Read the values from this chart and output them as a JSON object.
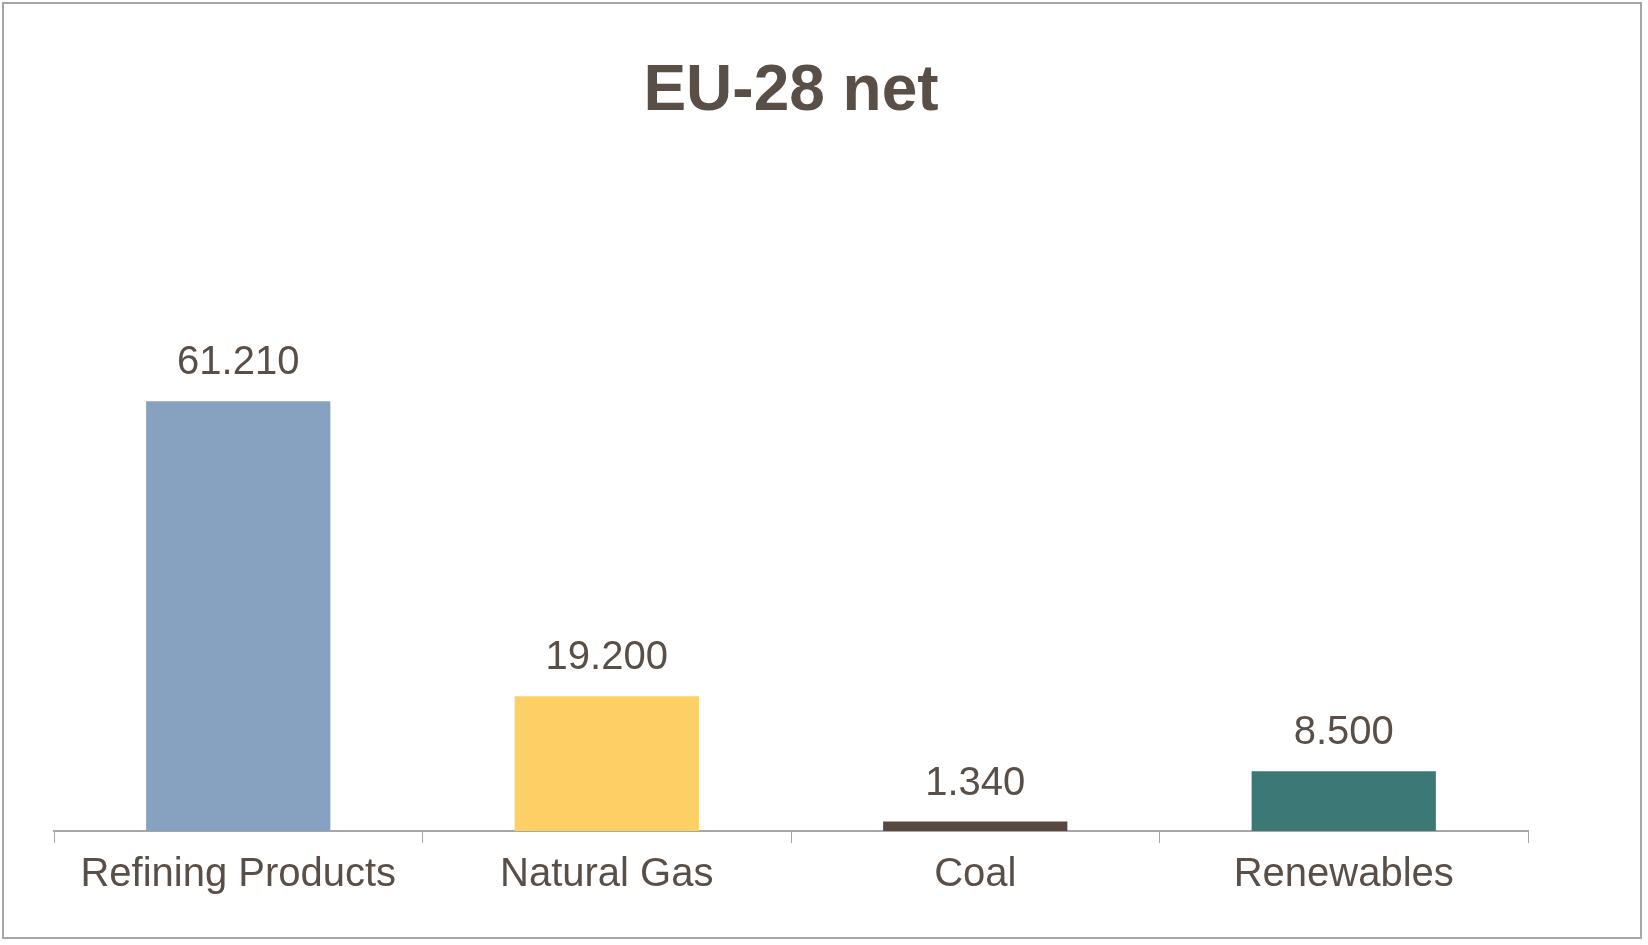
{
  "chart_data": {
    "type": "bar",
    "title": "EU-28 net",
    "categories": [
      "Refining Products",
      "Natural Gas",
      "Coal",
      "Renewables"
    ],
    "values": [
      61210,
      19200,
      1340,
      8500
    ],
    "value_labels": [
      "61.210",
      "19.200",
      "1.340",
      "8.500"
    ],
    "colors": [
      "#87a2c1",
      "#fdd066",
      "#574840",
      "#3b7876"
    ],
    "grid": false,
    "legend": false
  }
}
